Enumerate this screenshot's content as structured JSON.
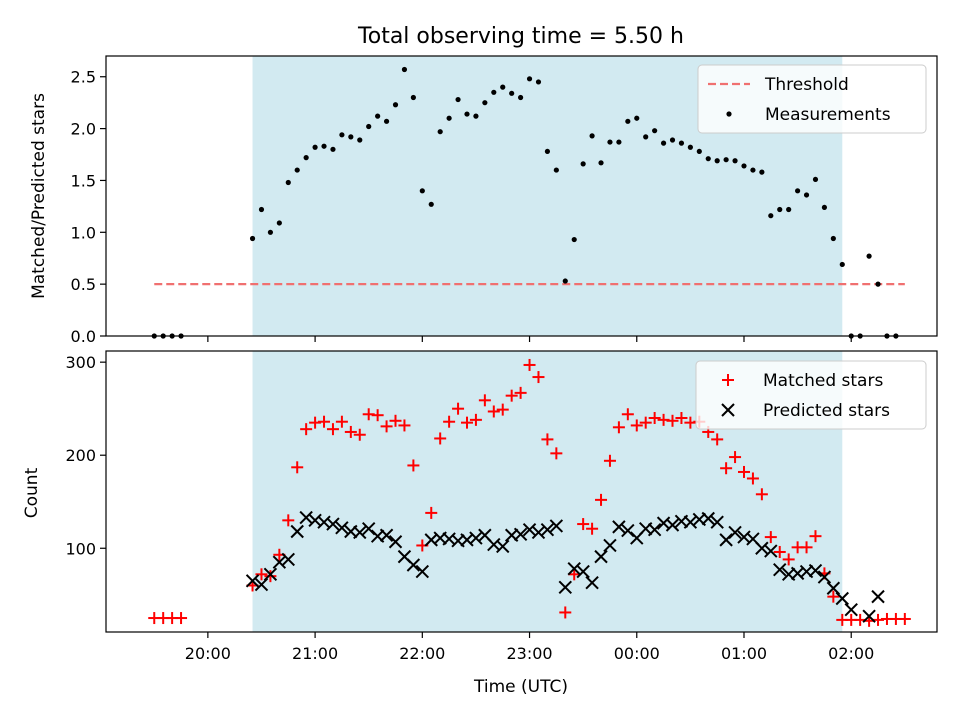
{
  "figure": {
    "title": "Total observing time = 5.50 h",
    "xlabel": "Time (UTC)"
  },
  "chart_data": [
    {
      "type": "scatter",
      "ylabel": "Matched/Predicted stars",
      "ylim": [
        0,
        2.7
      ],
      "yticks": [
        0.0,
        0.5,
        1.0,
        1.5,
        2.0,
        2.5
      ],
      "ytick_labels": [
        "0.0",
        "0.5",
        "1.0",
        "1.5",
        "2.0",
        "2.5"
      ],
      "xlim_hours": [
        19.05,
        26.8
      ],
      "observing_window": [
        "20:25",
        "01:55"
      ],
      "legend_position": "upper right",
      "threshold": {
        "name": "Threshold",
        "y": 0.5,
        "x_range": [
          "19:30",
          "02:30"
        ],
        "color": "#f07070"
      },
      "series": [
        {
          "name": "Measurements",
          "color": "#000000",
          "points": [
            [
              "19:30",
              0.0
            ],
            [
              "19:35",
              0.0
            ],
            [
              "19:40",
              0.0
            ],
            [
              "19:45",
              0.0
            ],
            [
              "20:25",
              0.94
            ],
            [
              "20:30",
              1.22
            ],
            [
              "20:35",
              1.0
            ],
            [
              "20:40",
              1.09
            ],
            [
              "20:45",
              1.48
            ],
            [
              "20:50",
              1.6
            ],
            [
              "20:55",
              1.72
            ],
            [
              "21:00",
              1.82
            ],
            [
              "21:05",
              1.83
            ],
            [
              "21:10",
              1.8
            ],
            [
              "21:15",
              1.94
            ],
            [
              "21:20",
              1.92
            ],
            [
              "21:25",
              1.89
            ],
            [
              "21:30",
              2.02
            ],
            [
              "21:35",
              2.12
            ],
            [
              "21:40",
              2.07
            ],
            [
              "21:45",
              2.23
            ],
            [
              "21:50",
              2.57
            ],
            [
              "21:55",
              2.3
            ],
            [
              "22:00",
              1.4
            ],
            [
              "22:05",
              1.27
            ],
            [
              "22:10",
              1.97
            ],
            [
              "22:15",
              2.1
            ],
            [
              "22:20",
              2.28
            ],
            [
              "22:25",
              2.14
            ],
            [
              "22:30",
              2.12
            ],
            [
              "22:35",
              2.25
            ],
            [
              "22:40",
              2.35
            ],
            [
              "22:45",
              2.4
            ],
            [
              "22:50",
              2.34
            ],
            [
              "22:55",
              2.3
            ],
            [
              "23:00",
              2.48
            ],
            [
              "23:05",
              2.45
            ],
            [
              "23:10",
              1.78
            ],
            [
              "23:15",
              1.6
            ],
            [
              "23:20",
              0.53
            ],
            [
              "23:25",
              0.93
            ],
            [
              "23:30",
              1.66
            ],
            [
              "23:35",
              1.93
            ],
            [
              "23:40",
              1.67
            ],
            [
              "23:45",
              1.87
            ],
            [
              "23:50",
              1.87
            ],
            [
              "23:55",
              2.07
            ],
            [
              "00:00",
              2.1
            ],
            [
              "00:05",
              1.92
            ],
            [
              "00:10",
              1.98
            ],
            [
              "00:15",
              1.86
            ],
            [
              "00:20",
              1.89
            ],
            [
              "00:25",
              1.86
            ],
            [
              "00:30",
              1.82
            ],
            [
              "00:35",
              1.78
            ],
            [
              "00:40",
              1.71
            ],
            [
              "00:45",
              1.69
            ],
            [
              "00:50",
              1.7
            ],
            [
              "00:55",
              1.69
            ],
            [
              "01:00",
              1.64
            ],
            [
              "01:05",
              1.6
            ],
            [
              "01:10",
              1.58
            ],
            [
              "01:15",
              1.16
            ],
            [
              "01:20",
              1.22
            ],
            [
              "01:25",
              1.22
            ],
            [
              "01:30",
              1.4
            ],
            [
              "01:35",
              1.36
            ],
            [
              "01:40",
              1.51
            ],
            [
              "01:45",
              1.24
            ],
            [
              "01:50",
              0.94
            ],
            [
              "01:55",
              0.69
            ],
            [
              "02:00",
              0.0
            ],
            [
              "02:05",
              0.0
            ],
            [
              "02:10",
              0.77
            ],
            [
              "02:15",
              0.5
            ],
            [
              "02:20",
              0.0
            ],
            [
              "02:25",
              0.0
            ]
          ]
        }
      ]
    },
    {
      "type": "scatter",
      "ylabel": "Count",
      "ylim": [
        10,
        312
      ],
      "yticks": [
        100,
        200,
        300
      ],
      "ytick_labels": [
        "100",
        "200",
        "300"
      ],
      "xlim_hours": [
        19.05,
        26.8
      ],
      "xticks": [
        "20:00",
        "21:00",
        "22:00",
        "23:00",
        "00:00",
        "01:00",
        "02:00"
      ],
      "xtick_labels": [
        "20:00",
        "21:00",
        "22:00",
        "23:00",
        "00:00",
        "01:00",
        "02:00"
      ],
      "observing_window": [
        "20:25",
        "01:55"
      ],
      "legend_position": "upper right",
      "series": [
        {
          "name": "Matched stars",
          "marker": "plus",
          "color": "#ff0000",
          "points": [
            [
              "19:30",
              25
            ],
            [
              "19:35",
              25
            ],
            [
              "19:40",
              25
            ],
            [
              "19:45",
              25
            ],
            [
              "20:25",
              60
            ],
            [
              "20:30",
              72
            ],
            [
              "20:35",
              70
            ],
            [
              "20:40",
              93
            ],
            [
              "20:45",
              130
            ],
            [
              "20:50",
              187
            ],
            [
              "20:55",
              228
            ],
            [
              "21:00",
              235
            ],
            [
              "21:05",
              236
            ],
            [
              "21:10",
              228
            ],
            [
              "21:15",
              236
            ],
            [
              "21:20",
              225
            ],
            [
              "21:25",
              222
            ],
            [
              "21:30",
              244
            ],
            [
              "21:35",
              243
            ],
            [
              "21:40",
              231
            ],
            [
              "21:45",
              237
            ],
            [
              "21:50",
              232
            ],
            [
              "21:55",
              189
            ],
            [
              "22:00",
              103
            ],
            [
              "22:05",
              138
            ],
            [
              "22:10",
              218
            ],
            [
              "22:15",
              236
            ],
            [
              "22:20",
              250
            ],
            [
              "22:25",
              235
            ],
            [
              "22:30",
              238
            ],
            [
              "22:35",
              259
            ],
            [
              "22:40",
              247
            ],
            [
              "22:45",
              249
            ],
            [
              "22:50",
              264
            ],
            [
              "22:55",
              267
            ],
            [
              "23:00",
              297
            ],
            [
              "23:05",
              284
            ],
            [
              "23:10",
              217
            ],
            [
              "23:15",
              202
            ],
            [
              "23:20",
              31
            ],
            [
              "23:25",
              72
            ],
            [
              "23:30",
              126
            ],
            [
              "23:35",
              121
            ],
            [
              "23:40",
              152
            ],
            [
              "23:45",
              194
            ],
            [
              "23:50",
              230
            ],
            [
              "23:55",
              244
            ],
            [
              "00:00",
              232
            ],
            [
              "00:05",
              235
            ],
            [
              "00:10",
              240
            ],
            [
              "00:15",
              238
            ],
            [
              "00:20",
              237
            ],
            [
              "00:25",
              240
            ],
            [
              "00:30",
              235
            ],
            [
              "00:35",
              236
            ],
            [
              "00:40",
              225
            ],
            [
              "00:45",
              217
            ],
            [
              "00:50",
              186
            ],
            [
              "00:55",
              198
            ],
            [
              "01:00",
              182
            ],
            [
              "01:05",
              175
            ],
            [
              "01:10",
              158
            ],
            [
              "01:15",
              112
            ],
            [
              "01:20",
              96
            ],
            [
              "01:25",
              88
            ],
            [
              "01:30",
              101
            ],
            [
              "01:35",
              101
            ],
            [
              "01:40",
              113
            ],
            [
              "01:45",
              73
            ],
            [
              "01:50",
              48
            ],
            [
              "01:55",
              23
            ],
            [
              "02:00",
              23
            ],
            [
              "02:05",
              23
            ],
            [
              "02:10",
              22
            ],
            [
              "02:15",
              23
            ],
            [
              "02:20",
              24
            ],
            [
              "02:25",
              24
            ],
            [
              "02:30",
              24
            ]
          ]
        },
        {
          "name": "Predicted stars",
          "marker": "x",
          "color": "#000000",
          "points": [
            [
              "20:25",
              65
            ],
            [
              "20:30",
              61
            ],
            [
              "20:35",
              72
            ],
            [
              "20:40",
              85
            ],
            [
              "20:45",
              88
            ],
            [
              "20:50",
              118
            ],
            [
              "20:55",
              133
            ],
            [
              "21:00",
              130
            ],
            [
              "21:05",
              128
            ],
            [
              "21:10",
              126
            ],
            [
              "21:15",
              122
            ],
            [
              "21:20",
              118
            ],
            [
              "21:25",
              117
            ],
            [
              "21:30",
              121
            ],
            [
              "21:35",
              113
            ],
            [
              "21:40",
              114
            ],
            [
              "21:45",
              107
            ],
            [
              "21:50",
              91
            ],
            [
              "21:55",
              82
            ],
            [
              "22:00",
              75
            ],
            [
              "22:05",
              109
            ],
            [
              "22:10",
              111
            ],
            [
              "22:15",
              110
            ],
            [
              "22:20",
              108
            ],
            [
              "22:25",
              109
            ],
            [
              "22:30",
              111
            ],
            [
              "22:35",
              114
            ],
            [
              "22:40",
              104
            ],
            [
              "22:45",
              102
            ],
            [
              "22:50",
              114
            ],
            [
              "22:55",
              115
            ],
            [
              "23:00",
              120
            ],
            [
              "23:05",
              117
            ],
            [
              "23:10",
              120
            ],
            [
              "23:15",
              124
            ],
            [
              "23:20",
              58
            ],
            [
              "23:25",
              78
            ],
            [
              "23:30",
              75
            ],
            [
              "23:35",
              63
            ],
            [
              "23:40",
              91
            ],
            [
              "23:45",
              103
            ],
            [
              "23:50",
              123
            ],
            [
              "23:55",
              119
            ],
            [
              "00:00",
              111
            ],
            [
              "00:05",
              121
            ],
            [
              "00:10",
              120
            ],
            [
              "00:15",
              127
            ],
            [
              "00:20",
              125
            ],
            [
              "00:25",
              129
            ],
            [
              "00:30",
              128
            ],
            [
              "00:35",
              131
            ],
            [
              "00:40",
              132
            ],
            [
              "00:45",
              128
            ],
            [
              "00:50",
              109
            ],
            [
              "00:55",
              117
            ],
            [
              "01:00",
              112
            ],
            [
              "01:05",
              110
            ],
            [
              "01:10",
              100
            ],
            [
              "01:15",
              97
            ],
            [
              "01:20",
              77
            ],
            [
              "01:25",
              72
            ],
            [
              "01:30",
              73
            ],
            [
              "01:35",
              75
            ],
            [
              "01:40",
              76
            ],
            [
              "01:45",
              69
            ],
            [
              "01:50",
              57
            ],
            [
              "01:55",
              46
            ],
            [
              "02:00",
              34
            ],
            [
              "02:10",
              27
            ],
            [
              "02:15",
              48
            ]
          ]
        }
      ]
    }
  ]
}
